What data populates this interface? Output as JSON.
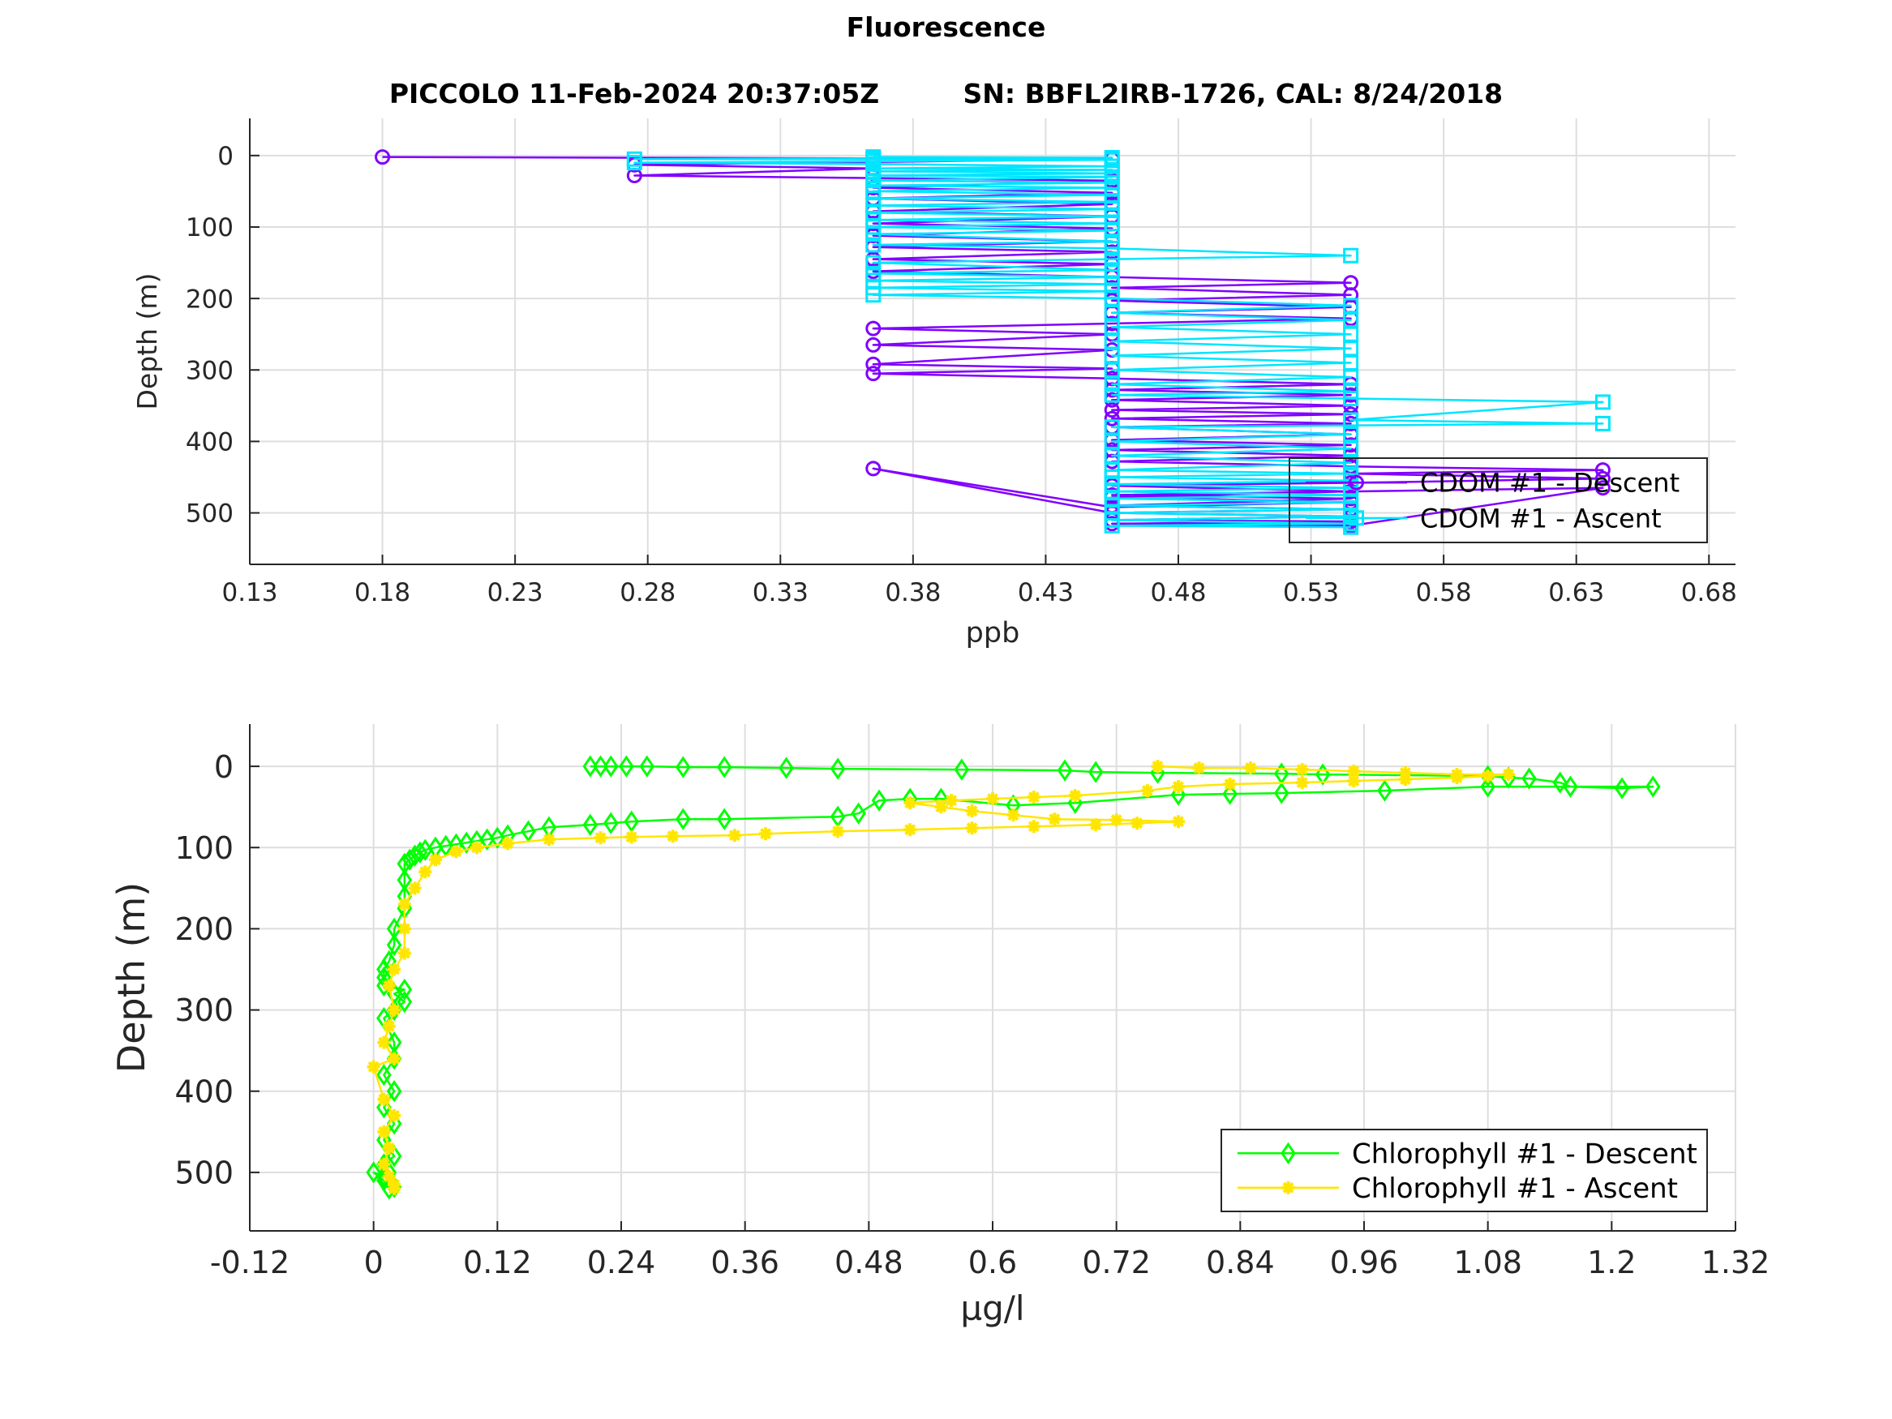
{
  "figure": {
    "title": "Fluorescence",
    "subtitle": "PICCOLO 11-Feb-2024 20:37:05Z         SN: BBFL2IRB-1726, CAL: 8/24/2018"
  },
  "chart_data": [
    {
      "type": "line",
      "xlabel": "ppb",
      "ylabel": "Depth (m)",
      "xlim": [
        0.13,
        0.69
      ],
      "ylim": [
        -52,
        572
      ],
      "y_reversed": true,
      "xticks": [
        "0.13",
        "0.18",
        "0.23",
        "0.28",
        "0.33",
        "0.38",
        "0.43",
        "0.48",
        "0.53",
        "0.58",
        "0.63",
        "0.68"
      ],
      "yticks": [
        "0",
        "100",
        "200",
        "300",
        "400",
        "500"
      ],
      "grid": true,
      "legend_placement": "bottom-right",
      "series": [
        {
          "name": "CDOM #1 - Descent",
          "color": "#8000ff",
          "marker": "circle",
          "x": [
            0.18,
            0.455,
            0.275,
            0.365,
            0.275,
            0.455,
            0.365,
            0.455,
            0.365,
            0.455,
            0.365,
            0.455,
            0.365,
            0.455,
            0.365,
            0.455,
            0.365,
            0.455,
            0.365,
            0.455,
            0.365,
            0.455,
            0.545,
            0.455,
            0.545,
            0.455,
            0.545,
            0.455,
            0.545,
            0.455,
            0.365,
            0.455,
            0.365,
            0.455,
            0.365,
            0.455,
            0.365,
            0.455,
            0.545,
            0.455,
            0.545,
            0.455,
            0.545,
            0.455,
            0.545,
            0.455,
            0.545,
            0.455,
            0.545,
            0.455,
            0.545,
            0.455,
            0.545,
            0.455,
            0.545,
            0.64,
            0.545,
            0.64,
            0.545,
            0.455,
            0.545,
            0.455,
            0.545,
            0.455,
            0.365,
            0.455,
            0.545,
            0.455,
            0.545,
            0.455,
            0.545,
            0.64,
            0.545,
            0.455,
            0.545,
            0.455,
            0.545,
            0.455,
            0.545
          ],
          "y": [
            2,
            5,
            13,
            18,
            28,
            35,
            45,
            52,
            60,
            68,
            78,
            85,
            95,
            102,
            112,
            120,
            128,
            135,
            145,
            152,
            162,
            170,
            178,
            185,
            195,
            203,
            212,
            220,
            228,
            235,
            242,
            250,
            265,
            272,
            292,
            298,
            305,
            312,
            320,
            328,
            335,
            342,
            350,
            356,
            362,
            368,
            375,
            380,
            390,
            398,
            405,
            412,
            420,
            428,
            435,
            440,
            445,
            452,
            458,
            462,
            470,
            478,
            485,
            492,
            438,
            500,
            505,
            510,
            512,
            515,
            518,
            465,
            470,
            475,
            480,
            490,
            495,
            500,
            505
          ]
        },
        {
          "name": "CDOM #1 - Ascent",
          "color": "#00e5ff",
          "marker": "square",
          "x": [
            0.545,
            0.455,
            0.545,
            0.455,
            0.545,
            0.455,
            0.545,
            0.455,
            0.545,
            0.455,
            0.545,
            0.455,
            0.545,
            0.455,
            0.545,
            0.455,
            0.545,
            0.455,
            0.545,
            0.455,
            0.545,
            0.455,
            0.545,
            0.455,
            0.64,
            0.545,
            0.64,
            0.545,
            0.455,
            0.545,
            0.455,
            0.545,
            0.455,
            0.545,
            0.455,
            0.545,
            0.455,
            0.545,
            0.455,
            0.545,
            0.455,
            0.545,
            0.455,
            0.365,
            0.455,
            0.365,
            0.455,
            0.365,
            0.455,
            0.365,
            0.455,
            0.365,
            0.455,
            0.545,
            0.455,
            0.365,
            0.455,
            0.365,
            0.455,
            0.365,
            0.455,
            0.365,
            0.455,
            0.365,
            0.455,
            0.365,
            0.455,
            0.365,
            0.455,
            0.365,
            0.455,
            0.365,
            0.455,
            0.365,
            0.455,
            0.365,
            0.455,
            0.365,
            0.455,
            0.365,
            0.455,
            0.365,
            0.275,
            0.365,
            0.455,
            0.365,
            0.275,
            0.365,
            0.455,
            0.365
          ],
          "y": [
            520,
            518,
            515,
            510,
            505,
            500,
            495,
            490,
            485,
            480,
            475,
            470,
            465,
            460,
            455,
            450,
            445,
            440,
            430,
            420,
            410,
            400,
            390,
            380,
            375,
            370,
            345,
            340,
            335,
            330,
            320,
            310,
            300,
            290,
            280,
            270,
            260,
            250,
            240,
            230,
            220,
            210,
            200,
            195,
            190,
            185,
            180,
            175,
            170,
            165,
            160,
            150,
            145,
            140,
            130,
            125,
            120,
            110,
            105,
            100,
            95,
            90,
            85,
            80,
            75,
            70,
            65,
            60,
            55,
            50,
            45,
            42,
            38,
            35,
            30,
            28,
            25,
            22,
            20,
            18,
            15,
            12,
            10,
            8,
            6,
            5,
            5,
            4,
            3,
            2
          ]
        }
      ]
    },
    {
      "type": "line",
      "xlabel": "µg/l",
      "ylabel": "Depth (m)",
      "xlim": [
        -0.12,
        1.32
      ],
      "ylim": [
        -52,
        572
      ],
      "y_reversed": true,
      "xticks": [
        "-0.12",
        "0",
        "0.12",
        "0.24",
        "0.36",
        "0.48",
        "0.6",
        "0.72",
        "0.84",
        "0.96",
        "1.08",
        "1.2",
        "1.32"
      ],
      "yticks": [
        "0",
        "100",
        "200",
        "300",
        "400",
        "500"
      ],
      "grid": true,
      "legend_placement": "bottom-right",
      "series": [
        {
          "name": "Chlorophyll #1 - Descent",
          "color": "#00ff00",
          "marker": "diamond",
          "x": [
            0.21,
            0.22,
            0.23,
            0.245,
            0.265,
            0.3,
            0.34,
            0.4,
            0.45,
            0.57,
            0.67,
            0.7,
            0.76,
            0.88,
            0.92,
            1.08,
            1.1,
            1.12,
            1.15,
            1.16,
            1.21,
            1.24,
            1.08,
            0.98,
            0.88,
            0.83,
            0.78,
            0.68,
            0.62,
            0.55,
            0.52,
            0.49,
            0.47,
            0.45,
            0.34,
            0.3,
            0.25,
            0.23,
            0.21,
            0.17,
            0.15,
            0.13,
            0.12,
            0.11,
            0.1,
            0.09,
            0.08,
            0.07,
            0.06,
            0.05,
            0.045,
            0.04,
            0.035,
            0.03,
            0.03,
            0.03,
            0.03,
            0.02,
            0.02,
            0.015,
            0.01,
            0.01,
            0.01,
            0.03,
            0.02,
            0.03,
            0.02,
            0.01,
            0.02,
            0.02,
            0.01,
            0.02,
            0.01,
            0.02,
            0.01,
            0.02,
            0.01,
            0.015,
            0.01,
            0.0,
            0.01,
            0.015,
            0.02
          ],
          "y": [
            0,
            0,
            0,
            0,
            0,
            1,
            1,
            2,
            3,
            4,
            5,
            7,
            8,
            9,
            10,
            12,
            14,
            15,
            20,
            25,
            27,
            25,
            25,
            30,
            33,
            34,
            35,
            45,
            48,
            40,
            40,
            42,
            58,
            62,
            65,
            65,
            68,
            70,
            72,
            75,
            80,
            85,
            88,
            90,
            92,
            94,
            96,
            98,
            100,
            103,
            106,
            110,
            115,
            120,
            140,
            160,
            175,
            200,
            220,
            240,
            250,
            260,
            270,
            275,
            280,
            290,
            300,
            310,
            340,
            360,
            380,
            400,
            420,
            440,
            460,
            480,
            490,
            500,
            505,
            500,
            510,
            520,
            518
          ]
        },
        {
          "name": "Chlorophyll #1 - Ascent",
          "color": "#ffe600",
          "marker": "asterisk",
          "x": [
            0.02,
            0.02,
            0.015,
            0.01,
            0.015,
            0.01,
            0.02,
            0.01,
            0.0,
            0.02,
            0.01,
            0.015,
            0.02,
            0.015,
            0.02,
            0.03,
            0.03,
            0.03,
            0.04,
            0.05,
            0.06,
            0.08,
            0.1,
            0.13,
            0.17,
            0.22,
            0.25,
            0.29,
            0.35,
            0.38,
            0.45,
            0.52,
            0.58,
            0.64,
            0.7,
            0.74,
            0.78,
            0.72,
            0.66,
            0.62,
            0.58,
            0.55,
            0.52,
            0.56,
            0.6,
            0.64,
            0.68,
            0.75,
            0.78,
            0.83,
            0.9,
            0.95,
            1.0,
            1.05,
            1.08,
            1.1,
            1.05,
            1.0,
            0.95,
            0.9,
            0.85,
            0.8,
            0.76
          ],
          "y": [
            520,
            515,
            505,
            490,
            470,
            450,
            430,
            410,
            370,
            360,
            340,
            320,
            300,
            270,
            250,
            230,
            200,
            170,
            150,
            130,
            115,
            105,
            100,
            95,
            90,
            88,
            87,
            86,
            85,
            83,
            80,
            78,
            76,
            74,
            72,
            70,
            68,
            66,
            65,
            60,
            55,
            50,
            45,
            42,
            40,
            38,
            36,
            30,
            25,
            22,
            20,
            18,
            16,
            14,
            12,
            10,
            10,
            8,
            6,
            4,
            2,
            2,
            0
          ]
        }
      ]
    }
  ]
}
